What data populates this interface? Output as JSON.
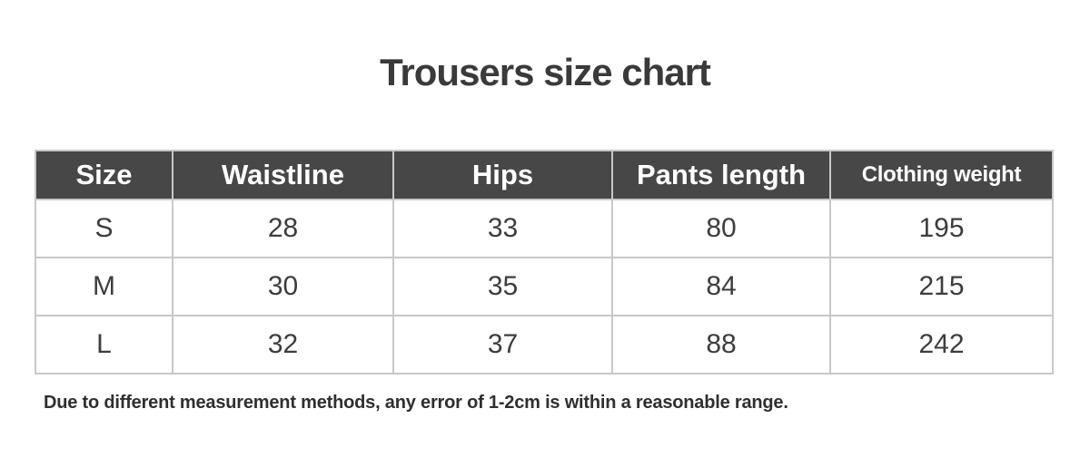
{
  "chart_data": {
    "type": "table",
    "title": "Trousers size chart",
    "columns": [
      "Size",
      "Waistline",
      "Hips",
      "Pants length",
      "Clothing weight"
    ],
    "rows": [
      [
        "S",
        28,
        33,
        80,
        195
      ],
      [
        "M",
        30,
        35,
        84,
        215
      ],
      [
        "L",
        32,
        37,
        88,
        242
      ]
    ],
    "footnote": "Due to different measurement methods, any error of 1-2cm is within a reasonable range.",
    "style": {
      "header_bg": "#474747",
      "header_text": "#ffffff",
      "body_text": "#3d3d3d",
      "border": "#c8c8c8",
      "title_color": "#3a3a3a"
    }
  }
}
